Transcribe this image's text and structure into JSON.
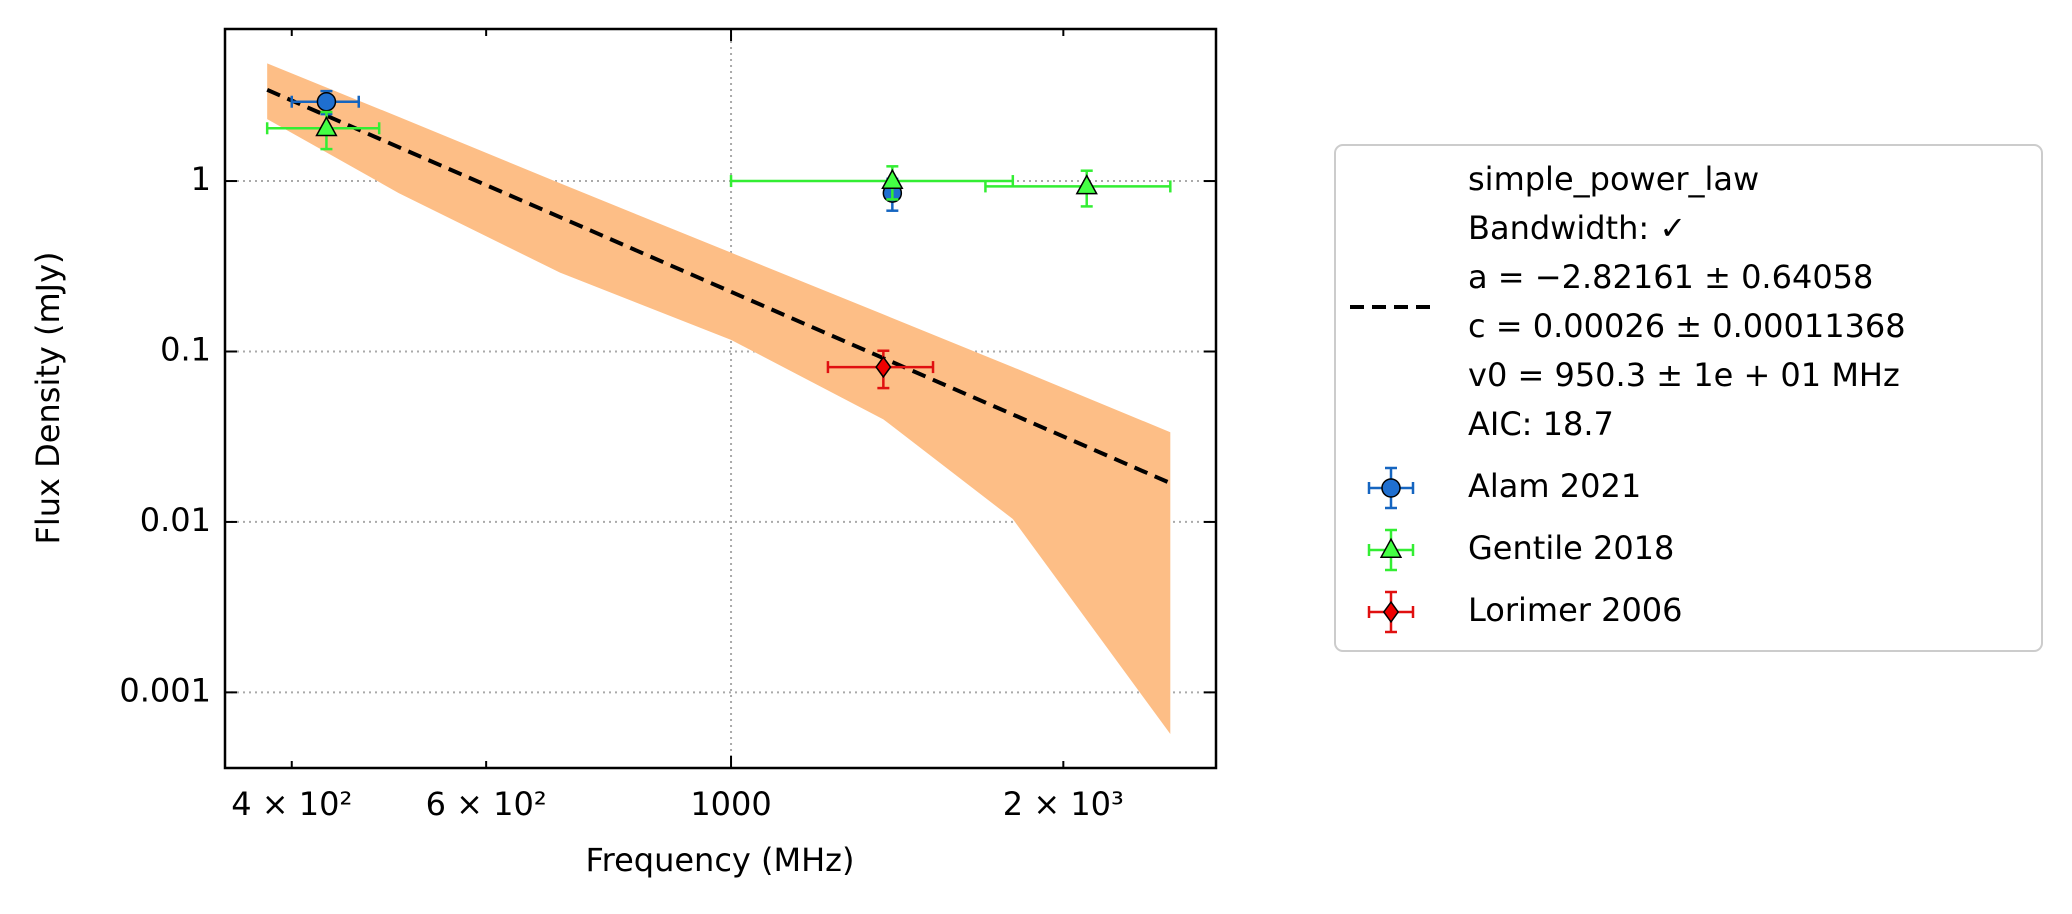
{
  "chart_data": {
    "type": "errorbar",
    "xlabel": "Frequency (MHz)",
    "ylabel": "Flux Density (mJy)",
    "log_x": true,
    "log_y": true,
    "xlim": [
      348,
      2750
    ],
    "ylim": [
      0.00036,
      7.8
    ],
    "xticks": [
      1000
    ],
    "xticks_minor_labeled": [
      {
        "value": 400,
        "label": "4 × 10²"
      },
      {
        "value": 600,
        "label": "6 × 10²"
      },
      {
        "value": 2000,
        "label": "2 × 10³"
      }
    ],
    "yticks": [
      0.001,
      0.01,
      0.1,
      1
    ],
    "grid": true,
    "legend": "outside right",
    "fit": {
      "name": [
        "simple_power_law",
        "Bandwidth: ✓",
        "a = −2.82161 ± 0.64058",
        "c = 0.00026 ± 0.00011368",
        "v0 = 950.3 ± 1e + 01 MHz",
        "AIC: 18.7"
      ],
      "color": "#000000",
      "band_color": "#fdbe86",
      "x": [
        380,
        500,
        700,
        1000,
        1374,
        1800,
        2500
      ],
      "values": [
        3.43,
        1.58,
        0.614,
        0.224,
        0.0914,
        0.0427,
        0.0169
      ],
      "lower": [
        2.31,
        0.85,
        0.29,
        0.117,
        0.04,
        0.0104,
        0.00057
      ],
      "upper": [
        4.9,
        2.38,
        0.97,
        0.38,
        0.165,
        0.081,
        0.0336
      ]
    },
    "series": [
      {
        "name": "Alam 2021",
        "color": "#1565c0",
        "fill": "#1f6fd0",
        "marker": "circle",
        "x": [
          430,
          1400
        ],
        "values": [
          2.92,
          0.85
        ],
        "xerr": [
          30,
          20
        ],
        "yerr": [
          0.45,
          0.18
        ]
      },
      {
        "name": "Gentile 2018",
        "color": "#33ee33",
        "fill": "#44ff44",
        "marker": "triangle",
        "x": [
          430,
          1400,
          2100
        ],
        "values": [
          2.04,
          1.0,
          0.93
        ],
        "xerr": [
          50,
          400,
          400
        ],
        "yerr": [
          0.5,
          0.22,
          0.22
        ]
      },
      {
        "name": "Lorimer 2006",
        "color": "#e01010",
        "fill": "#ee0000",
        "marker": "diamond",
        "x": [
          1374
        ],
        "values": [
          0.081
        ],
        "xerr": [
          150
        ],
        "yerr": [
          0.02
        ]
      }
    ]
  }
}
